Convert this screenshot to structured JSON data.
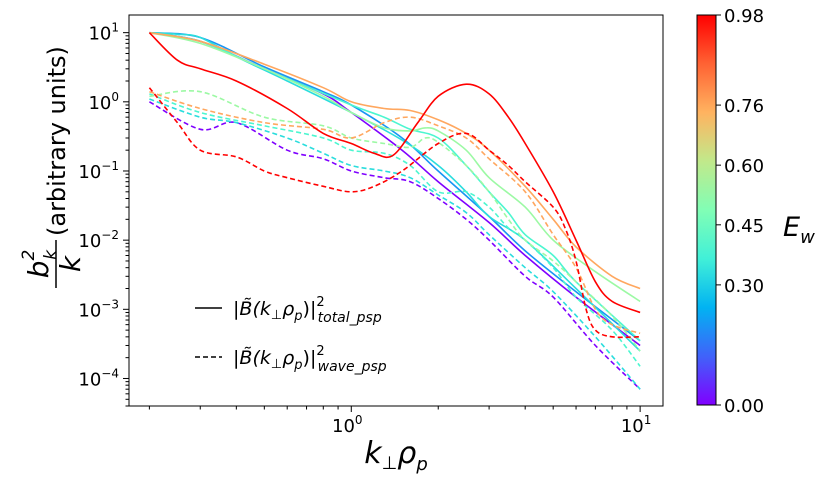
{
  "chart_data": {
    "type": "line",
    "xscale": "log",
    "yscale": "log",
    "xlim": [
      0.17,
      12.0
    ],
    "ylim": [
      4e-05,
      18.0
    ],
    "xlabel_main": "k",
    "xlabel_sub": "⊥",
    "xlabel_tail": "ρ",
    "xlabel_tail_sub": "p",
    "ylabel_num": "b",
    "ylabel_num_sup": "2",
    "ylabel_num_sub": "k",
    "ylabel_den": "k",
    "ylabel_rest": "(arbitrary units)",
    "x_ticks": [
      {
        "value": 1.0,
        "base": "10",
        "exp": "0"
      },
      {
        "value": 10.0,
        "base": "10",
        "exp": "1"
      }
    ],
    "y_ticks": [
      {
        "value": 10,
        "base": "10",
        "exp": "1"
      },
      {
        "value": 1,
        "base": "10",
        "exp": "0"
      },
      {
        "value": 0.1,
        "base": "10",
        "exp": "−1"
      },
      {
        "value": 0.01,
        "base": "10",
        "exp": "−2"
      },
      {
        "value": 0.001,
        "base": "10",
        "exp": "−3"
      },
      {
        "value": 0.0001,
        "base": "10",
        "exp": "−4"
      }
    ],
    "legend": [
      {
        "style": "solid",
        "prefix": "|",
        "B": "B̃",
        "arg": "(k",
        "arg_sub": "⊥",
        "arg2": "ρ",
        "arg2_sub": "p",
        "close": ")|",
        "sup": "2",
        "sub": "total_psp"
      },
      {
        "style": "dashed",
        "prefix": "|",
        "B": "B̃",
        "arg": "(k",
        "arg_sub": "⊥",
        "arg2": "ρ",
        "arg2_sub": "p",
        "close": ")|",
        "sup": "2",
        "sub": "wave_psp"
      }
    ],
    "colorbar": {
      "label_main": "E",
      "label_sub": "w",
      "tick_labels": [
        {
          "value": 0.98,
          "label": "0.98"
        },
        {
          "value": 0.76,
          "label": "0.76"
        },
        {
          "value": 0.6,
          "label": "0.60"
        },
        {
          "value": 0.45,
          "label": "0.45"
        },
        {
          "value": 0.3,
          "label": "0.30"
        },
        {
          "value": 0.0,
          "label": "0.00"
        }
      ],
      "stops": [
        "#8000ff",
        "#4062fa",
        "#01b3f2",
        "#41f0d8",
        "#81feb5",
        "#c1e98b",
        "#ffb360",
        "#ff6233",
        "#ff0000"
      ]
    },
    "series": [
      {
        "name": "E_w=0.00 total",
        "ew": 0.0,
        "color": "#7f00ff",
        "style": "solid",
        "x": [
          0.2,
          0.3,
          0.5,
          0.8,
          1.0,
          1.5,
          2.0,
          3.0,
          4.0,
          6.0,
          10.0
        ],
        "y": [
          10,
          7.5,
          3.0,
          1.3,
          0.7,
          0.2,
          0.07,
          0.018,
          0.006,
          0.0015,
          0.0003
        ]
      },
      {
        "name": "E_w=0.00 wave",
        "ew": 0.0,
        "color": "#7f00ff",
        "style": "dashed",
        "x": [
          0.2,
          0.3,
          0.4,
          0.6,
          0.8,
          1.0,
          1.3,
          1.6,
          2.0,
          2.5,
          3.0,
          4.0,
          5.0,
          7.0,
          10.0
        ],
        "y": [
          1.0,
          0.4,
          0.5,
          0.2,
          0.15,
          0.1,
          0.08,
          0.07,
          0.04,
          0.02,
          0.01,
          0.003,
          0.0015,
          0.0003,
          7e-05
        ]
      },
      {
        "name": "E_w=0.30 total",
        "ew": 0.3,
        "color": "#1996f3",
        "style": "solid",
        "x": [
          0.2,
          0.3,
          0.5,
          0.8,
          1.0,
          1.5,
          2.0,
          3.0,
          4.0,
          6.0,
          10.0
        ],
        "y": [
          10,
          8.5,
          3.2,
          1.4,
          0.9,
          0.3,
          0.1,
          0.022,
          0.007,
          0.0018,
          0.00035
        ]
      },
      {
        "name": "E_w=0.40 total",
        "ew": 0.4,
        "color": "#2adddd",
        "style": "solid",
        "x": [
          0.2,
          0.25,
          0.3,
          0.4,
          0.6,
          1.0,
          1.5,
          2.0,
          2.5,
          3.0,
          4.0,
          6.0,
          10.0
        ],
        "y": [
          10,
          9.5,
          8.5,
          4.5,
          2.0,
          0.7,
          0.28,
          0.12,
          0.05,
          0.022,
          0.01,
          0.002,
          0.00025
        ]
      },
      {
        "name": "E_w=0.40 wave",
        "ew": 0.4,
        "color": "#2adddd",
        "style": "dashed",
        "x": [
          0.2,
          0.3,
          0.4,
          0.6,
          0.8,
          1.0,
          1.3,
          1.6,
          2.0,
          2.5,
          3.0,
          4.0,
          5.0,
          7.0,
          10.0
        ],
        "y": [
          1.1,
          0.6,
          0.5,
          0.3,
          0.18,
          0.12,
          0.1,
          0.08,
          0.045,
          0.025,
          0.012,
          0.004,
          0.0018,
          0.0004,
          7e-05
        ]
      },
      {
        "name": "E_w=0.50 total",
        "ew": 0.5,
        "color": "#4cf6d0",
        "style": "solid",
        "x": [
          0.2,
          0.3,
          0.5,
          1.0,
          1.3,
          1.6,
          2.0,
          2.5,
          3.0,
          3.5,
          4.0,
          5.0,
          6.0,
          10.0
        ],
        "y": [
          10,
          7.5,
          3.0,
          0.9,
          0.6,
          0.4,
          0.3,
          0.12,
          0.05,
          0.025,
          0.012,
          0.006,
          0.0025,
          0.00035
        ]
      },
      {
        "name": "E_w=0.50 wave",
        "ew": 0.5,
        "color": "#4cf6d0",
        "style": "dashed",
        "x": [
          0.2,
          0.3,
          0.5,
          0.8,
          1.0,
          1.3,
          1.6,
          2.0,
          2.5,
          3.0,
          3.5,
          4.0,
          5.0,
          6.0,
          8.0,
          10.0
        ],
        "y": [
          1.3,
          0.7,
          0.45,
          0.3,
          0.2,
          0.18,
          0.12,
          0.05,
          0.05,
          0.03,
          0.015,
          0.01,
          0.004,
          0.0015,
          0.0005,
          0.00015
        ]
      },
      {
        "name": "E_w=0.60 total",
        "ew": 0.6,
        "color": "#9cf9a4",
        "style": "solid",
        "x": [
          0.2,
          0.3,
          0.5,
          0.8,
          1.0,
          1.3,
          1.6,
          1.8,
          2.0,
          2.5,
          3.0,
          4.0,
          5.0,
          7.0,
          10.0
        ],
        "y": [
          10,
          7.0,
          3.0,
          1.2,
          0.7,
          0.42,
          0.38,
          0.42,
          0.38,
          0.2,
          0.08,
          0.03,
          0.01,
          0.0035,
          0.0013
        ]
      },
      {
        "name": "E_w=0.60 wave",
        "ew": 0.6,
        "color": "#9cf9a4",
        "style": "dashed",
        "x": [
          0.2,
          0.3,
          0.5,
          0.8,
          1.0,
          1.3,
          1.6,
          1.8,
          2.0,
          2.5,
          3.0,
          3.5,
          4.0,
          5.0,
          6.0,
          8.0,
          10.0
        ],
        "y": [
          1.2,
          1.4,
          0.6,
          0.45,
          0.3,
          0.25,
          0.22,
          0.3,
          0.26,
          0.12,
          0.05,
          0.02,
          0.01,
          0.005,
          0.0025,
          0.0008,
          0.00025
        ]
      },
      {
        "name": "E_w=0.76 total",
        "ew": 0.76,
        "color": "#ffa75f",
        "style": "solid",
        "x": [
          0.2,
          0.3,
          0.5,
          0.8,
          1.0,
          1.3,
          1.6,
          2.0,
          2.5,
          3.0,
          4.0,
          5.0,
          6.0,
          8.0,
          10.0
        ],
        "y": [
          10,
          7.5,
          3.5,
          1.6,
          1.0,
          0.8,
          0.75,
          0.55,
          0.35,
          0.2,
          0.06,
          0.02,
          0.008,
          0.003,
          0.002
        ]
      },
      {
        "name": "E_w=0.76 wave",
        "ew": 0.76,
        "color": "#ffa75f",
        "style": "dashed",
        "x": [
          0.2,
          0.3,
          0.5,
          0.8,
          1.0,
          1.3,
          1.6,
          2.0,
          2.5,
          3.0,
          4.0,
          5.0,
          6.0,
          7.0,
          8.0,
          10.0
        ],
        "y": [
          1.4,
          0.8,
          0.5,
          0.4,
          0.3,
          0.5,
          0.6,
          0.45,
          0.3,
          0.15,
          0.05,
          0.012,
          0.004,
          0.001,
          0.0006,
          0.00045
        ]
      },
      {
        "name": "E_w=0.98 total",
        "ew": 0.98,
        "color": "#ff0000",
        "style": "solid",
        "x": [
          0.2,
          0.25,
          0.3,
          0.4,
          0.6,
          0.8,
          1.0,
          1.2,
          1.4,
          1.7,
          2.0,
          2.5,
          3.0,
          3.5,
          4.0,
          5.0,
          6.0,
          7.0,
          8.0,
          10.0
        ],
        "y": [
          10,
          4.0,
          3.0,
          2.0,
          0.8,
          0.35,
          0.25,
          0.18,
          0.17,
          0.5,
          1.2,
          1.8,
          1.3,
          0.6,
          0.25,
          0.05,
          0.01,
          0.0025,
          0.0013,
          0.0009
        ]
      },
      {
        "name": "E_w=0.98 wave",
        "ew": 0.98,
        "color": "#ff0000",
        "style": "dashed",
        "x": [
          0.2,
          0.25,
          0.3,
          0.4,
          0.5,
          0.6,
          0.8,
          1.0,
          1.2,
          1.5,
          2.0,
          2.5,
          3.0,
          3.5,
          4.0,
          5.0,
          5.5,
          6.0,
          6.5,
          7.0,
          8.0,
          10.0
        ],
        "y": [
          1.6,
          0.5,
          0.2,
          0.16,
          0.1,
          0.08,
          0.06,
          0.05,
          0.06,
          0.1,
          0.25,
          0.35,
          0.2,
          0.12,
          0.07,
          0.03,
          0.015,
          0.005,
          0.001,
          0.0005,
          0.0004,
          0.0004
        ]
      }
    ]
  }
}
